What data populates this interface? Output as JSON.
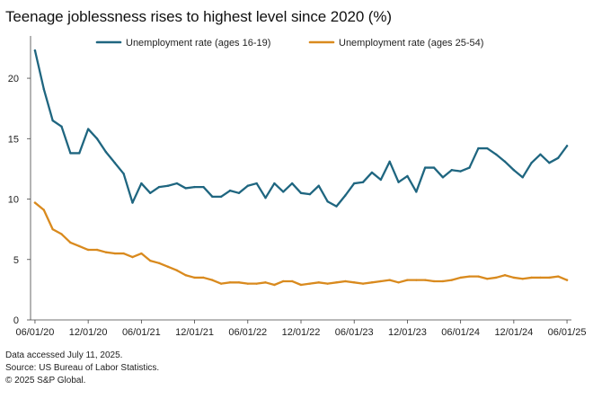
{
  "chart_data": {
    "type": "line",
    "title": "Teenage joblessness rises to highest level since 2020 (%)",
    "xlabel": "",
    "ylabel": "",
    "ylim": [
      0,
      23.5
    ],
    "y_ticks": [
      0,
      5,
      10,
      15,
      20
    ],
    "x_tick_labels": [
      "06/01/20",
      "12/01/20",
      "06/01/21",
      "12/01/21",
      "06/01/22",
      "12/01/22",
      "06/01/23",
      "12/01/23",
      "06/01/24",
      "12/01/24",
      "06/01/25"
    ],
    "x_tick_month_index": [
      0,
      6,
      12,
      18,
      24,
      30,
      36,
      42,
      48,
      54,
      60
    ],
    "x_range_months": [
      -0.5,
      60.5
    ],
    "legend_position": "top",
    "series": [
      {
        "name": "Unemployment rate (ages 16-19)",
        "color": "#1f6680",
        "values": [
          22.3,
          19.1,
          16.5,
          16.0,
          13.8,
          13.8,
          15.8,
          15.0,
          13.9,
          13.0,
          12.1,
          9.7,
          11.3,
          10.5,
          11.0,
          11.1,
          11.3,
          10.9,
          11.0,
          11.0,
          10.2,
          10.2,
          10.7,
          10.5,
          11.1,
          11.3,
          10.1,
          11.3,
          10.6,
          11.3,
          10.5,
          10.4,
          11.1,
          9.8,
          9.4,
          10.3,
          11.3,
          11.4,
          12.2,
          11.6,
          13.1,
          11.4,
          11.9,
          10.6,
          12.6,
          12.6,
          11.8,
          12.4,
          12.3,
          12.6,
          14.2,
          14.2,
          13.7,
          13.1,
          12.4,
          11.8,
          13.0,
          13.7,
          13.0,
          13.4,
          14.4
        ]
      },
      {
        "name": "Unemployment rate (ages 25-54)",
        "color": "#d98a1e",
        "values": [
          9.7,
          9.1,
          7.5,
          7.1,
          6.4,
          6.1,
          5.8,
          5.8,
          5.6,
          5.5,
          5.5,
          5.2,
          5.5,
          4.9,
          4.7,
          4.4,
          4.1,
          3.7,
          3.5,
          3.5,
          3.3,
          3.0,
          3.1,
          3.1,
          3.0,
          3.0,
          3.1,
          2.9,
          3.2,
          3.2,
          2.9,
          3.0,
          3.1,
          3.0,
          3.1,
          3.2,
          3.1,
          3.0,
          3.1,
          3.2,
          3.3,
          3.1,
          3.3,
          3.3,
          3.3,
          3.2,
          3.2,
          3.3,
          3.5,
          3.6,
          3.6,
          3.4,
          3.5,
          3.7,
          3.5,
          3.4,
          3.5,
          3.5,
          3.5,
          3.6,
          3.3
        ]
      }
    ]
  },
  "footer": {
    "line1": "Data accessed July 11, 2025.",
    "line2": "Source: US Bureau of Labor Statistics.",
    "line3": "© 2025 S&P Global."
  },
  "colors": {
    "axis": "#444444",
    "text": "#222222"
  }
}
